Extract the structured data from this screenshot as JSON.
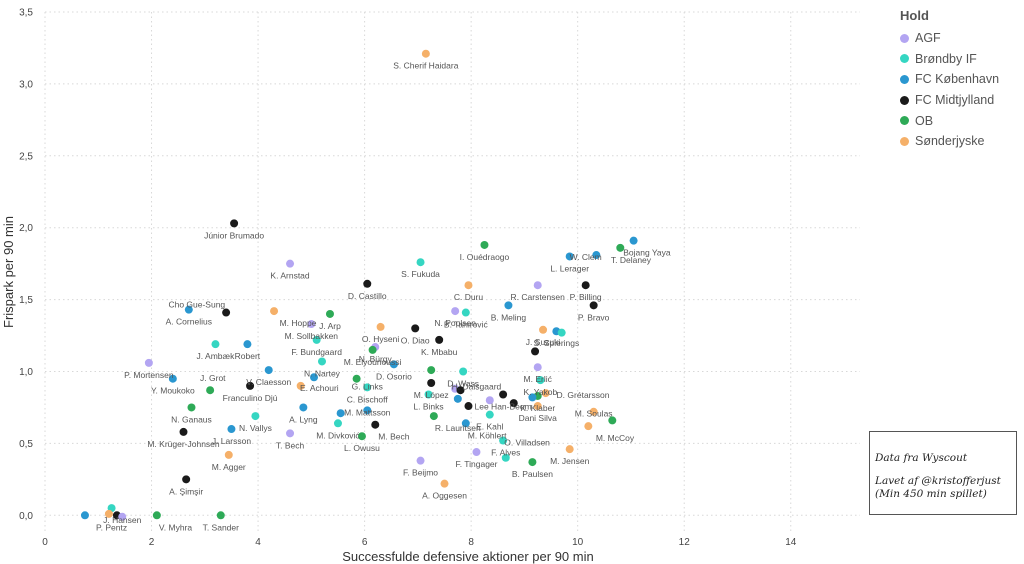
{
  "chart_data": {
    "type": "scatter",
    "xlabel": "Successfulde defensive aktioner per 90 min",
    "ylabel": "Frispark per 90 min",
    "xlim": [
      0,
      15.3
    ],
    "ylim": [
      -0.13,
      3.5
    ],
    "xticks": [
      0,
      2,
      4,
      6,
      8,
      10,
      12,
      14
    ],
    "yticks": [
      0.0,
      0.5,
      1.0,
      1.5,
      2.0,
      2.5,
      3.0,
      3.5
    ],
    "xtick_labels": [
      "0",
      "2",
      "4",
      "6",
      "8",
      "10",
      "12",
      "14"
    ],
    "ytick_labels": [
      "0,0",
      "0,5",
      "1,0",
      "1,5",
      "2,0",
      "2,5",
      "3,0",
      "3,5"
    ],
    "grid": true,
    "legend_position": "top-right",
    "legend": {
      "title": "Hold",
      "items": [
        {
          "name": "AGF",
          "color": "#b3a5f2"
        },
        {
          "name": "Brøndby IF",
          "color": "#35d6c2"
        },
        {
          "name": "FC København",
          "color": "#2a97d0"
        },
        {
          "name": "FC Midtjylland",
          "color": "#1a1a1a"
        },
        {
          "name": "OB",
          "color": "#2eaa57"
        },
        {
          "name": "Sønderjyske",
          "color": "#f5b069"
        }
      ]
    },
    "points": [
      {
        "label": "S. Cherif Haidara",
        "x": 7.15,
        "y": 3.21,
        "team": "Sønderjyske"
      },
      {
        "label": "Júnior Brumado",
        "x": 3.55,
        "y": 2.03,
        "team": "FC Midtjylland"
      },
      {
        "label": "Bojang Yaya",
        "x": 11.05,
        "y": 1.91,
        "team": "FC København"
      },
      {
        "label": "W. Clem",
        "x": 10.35,
        "y": 1.81,
        "team": "FC København"
      },
      {
        "label": "T. Delaney",
        "x": 10.8,
        "y": 1.86,
        "team": "OB"
      },
      {
        "label": "I. Ouédraogo",
        "x": 8.25,
        "y": 1.88,
        "team": "OB"
      },
      {
        "label": "L. Lerager",
        "x": 9.85,
        "y": 1.8,
        "team": "FC København"
      },
      {
        "label": "K. Arnstad",
        "x": 4.6,
        "y": 1.75,
        "team": "AGF"
      },
      {
        "label": "S. Fukuda",
        "x": 7.05,
        "y": 1.76,
        "team": "Brøndby IF"
      },
      {
        "label": "D. Castillo",
        "x": 6.05,
        "y": 1.61,
        "team": "FC Midtjylland"
      },
      {
        "label": "C. Duru",
        "x": 7.95,
        "y": 1.6,
        "team": "Sønderjyske"
      },
      {
        "label": "R. Carstensen",
        "x": 9.25,
        "y": 1.6,
        "team": "AGF"
      },
      {
        "label": "P. Billing",
        "x": 10.15,
        "y": 1.6,
        "team": "FC Midtjylland"
      },
      {
        "label": "Cho Gue-Sung",
        "x": 3.4,
        "y": 1.41,
        "team": "FC Midtjylland"
      },
      {
        "label": "A. Cornelius",
        "x": 2.7,
        "y": 1.43,
        "team": "FC København"
      },
      {
        "label": "M. Hoppe",
        "x": 4.3,
        "y": 1.42,
        "team": "Sønderjyske"
      },
      {
        "label": "J. Arp",
        "x": 5.35,
        "y": 1.4,
        "team": "OB"
      },
      {
        "label": "B. Tahirović",
        "x": 7.9,
        "y": 1.41,
        "team": "Brøndby IF"
      },
      {
        "label": "N. Poulsen",
        "x": 7.7,
        "y": 1.42,
        "team": "AGF"
      },
      {
        "label": "P. Bravo",
        "x": 10.3,
        "y": 1.46,
        "team": "FC Midtjylland"
      },
      {
        "label": "B. Meling",
        "x": 8.7,
        "y": 1.46,
        "team": "FC København"
      },
      {
        "label": "O. Hyseni",
        "x": 6.3,
        "y": 1.31,
        "team": "Sønderjyske"
      },
      {
        "label": "M. Sollbakken",
        "x": 5.0,
        "y": 1.33,
        "team": "AGF"
      },
      {
        "label": "J. Suzuki",
        "x": 9.35,
        "y": 1.29,
        "team": "Sønderjyske"
      },
      {
        "label": "S. Spierings",
        "x": 9.6,
        "y": 1.28,
        "team": "FC København"
      },
      {
        "label": "S. Spierings (B)",
        "x": 9.7,
        "y": 1.27,
        "team": "Brøndby IF"
      },
      {
        "label": "O. Diao",
        "x": 6.95,
        "y": 1.3,
        "team": "FC Midtjylland"
      },
      {
        "label": "N. Bürgy",
        "x": 6.2,
        "y": 1.17,
        "team": "AGF"
      },
      {
        "label": "K. Mbabu",
        "x": 7.4,
        "y": 1.22,
        "team": "FC Midtjylland"
      },
      {
        "label": "Robert",
        "x": 3.8,
        "y": 1.19,
        "team": "FC København"
      },
      {
        "label": "J. Ambæk",
        "x": 3.2,
        "y": 1.19,
        "team": "Brøndby IF"
      },
      {
        "label": "F. Bundgaard",
        "x": 5.1,
        "y": 1.22,
        "team": "Brøndby IF"
      },
      {
        "label": "M. Elyounoussi",
        "x": 6.15,
        "y": 1.15,
        "team": "OB"
      },
      {
        "label": "S. Spierings (M)",
        "x": 9.2,
        "y": 1.14,
        "team": "FC Midtjylland"
      },
      {
        "label": "P. Mortensen",
        "x": 1.95,
        "y": 1.06,
        "team": "AGF"
      },
      {
        "label": "N. Nartey",
        "x": 5.2,
        "y": 1.07,
        "team": "Brøndby IF"
      },
      {
        "label": "D. Wass",
        "x": 7.85,
        "y": 1.0,
        "team": "Brøndby IF"
      },
      {
        "label": "M. Erlić",
        "x": 9.25,
        "y": 1.03,
        "team": "AGF"
      },
      {
        "label": "J. Grot",
        "x": 2.4,
        "y": 0.95,
        "team": "FC København"
      },
      {
        "label": "V. Claesson",
        "x": 4.2,
        "y": 1.01,
        "team": "FC København"
      },
      {
        "label": "N. Nartey (K)",
        "x": 5.05,
        "y": 0.96,
        "team": "FC København"
      },
      {
        "label": "D. Osorio",
        "x": 6.55,
        "y": 1.05,
        "team": "FC København"
      },
      {
        "label": "G. Links",
        "x": 7.25,
        "y": 1.01,
        "team": "OB"
      },
      {
        "label": "K. Yakob",
        "x": 9.3,
        "y": 0.94,
        "team": "Brøndby IF"
      },
      {
        "label": "Y. Moukoko",
        "x": 3.1,
        "y": 0.87,
        "team": "OB"
      },
      {
        "label": "Franculino Djú",
        "x": 3.85,
        "y": 0.9,
        "team": "FC Midtjylland"
      },
      {
        "label": "E. Achouri",
        "x": 4.8,
        "y": 0.9,
        "team": "Sønderjyske"
      },
      {
        "label": "M. López",
        "x": 7.25,
        "y": 0.92,
        "team": "FC Midtjylland"
      },
      {
        "label": "H. Dalsgaard",
        "x": 7.7,
        "y": 0.88,
        "team": "AGF"
      },
      {
        "label": "H. Dalsgaard (M)",
        "x": 7.8,
        "y": 0.87,
        "team": "FC Midtjylland"
      },
      {
        "label": "K. Klaber",
        "x": 9.25,
        "y": 0.83,
        "team": "OB"
      },
      {
        "label": "D. Grétarsson",
        "x": 9.4,
        "y": 0.85,
        "team": "Sønderjyske"
      },
      {
        "label": "D. Grétarsson (K)",
        "x": 9.15,
        "y": 0.82,
        "team": "FC København"
      },
      {
        "label": "C. Bischoff",
        "x": 6.05,
        "y": 0.89,
        "team": "Brøndby IF"
      },
      {
        "label": "L. Binks",
        "x": 7.2,
        "y": 0.84,
        "team": "Brøndby IF"
      },
      {
        "label": "Lee Han-Beom",
        "x": 8.6,
        "y": 0.84,
        "team": "FC Midtjylland"
      },
      {
        "label": "Dani Silva",
        "x": 8.8,
        "y": 0.78,
        "team": "FC Midtjylland"
      },
      {
        "label": "Dani Silva (A)",
        "x": 8.35,
        "y": 0.8,
        "team": "AGF"
      },
      {
        "label": "Dani Silva (S)",
        "x": 9.25,
        "y": 0.76,
        "team": "Sønderjyske"
      },
      {
        "label": "A. Lyng",
        "x": 4.85,
        "y": 0.75,
        "team": "FC København"
      },
      {
        "label": "N. Ganaus",
        "x": 2.75,
        "y": 0.75,
        "team": "OB"
      },
      {
        "label": "M. Mattsson",
        "x": 5.55,
        "y": 0.71,
        "team": "FC København"
      },
      {
        "label": "M. Mattsson (K2)",
        "x": 6.05,
        "y": 0.73,
        "team": "FC København"
      },
      {
        "label": "E. Kahl",
        "x": 7.95,
        "y": 0.76,
        "team": "FC Midtjylland"
      },
      {
        "label": "E. Kahl (B)",
        "x": 8.35,
        "y": 0.7,
        "team": "Brøndby IF"
      },
      {
        "label": "E. Kahl (K)",
        "x": 7.75,
        "y": 0.81,
        "team": "FC København"
      },
      {
        "label": "M. Soulas",
        "x": 10.3,
        "y": 0.72,
        "team": "Sønderjyske"
      },
      {
        "label": "M. Krüger-Johnsen",
        "x": 2.6,
        "y": 0.58,
        "team": "FC Midtjylland"
      },
      {
        "label": "N. Vallys",
        "x": 3.95,
        "y": 0.69,
        "team": "Brøndby IF"
      },
      {
        "label": "M. Bech",
        "x": 6.2,
        "y": 0.63,
        "team": "FC Midtjylland"
      },
      {
        "label": "R. Lauritsen",
        "x": 7.3,
        "y": 0.69,
        "team": "OB"
      },
      {
        "label": "M. Köhlert",
        "x": 7.9,
        "y": 0.64,
        "team": "FC København"
      },
      {
        "label": "M. McCoy",
        "x": 10.2,
        "y": 0.62,
        "team": "Sønderjyske"
      },
      {
        "label": "M. McCoy (O)",
        "x": 10.65,
        "y": 0.66,
        "team": "OB"
      },
      {
        "label": "J. Larsson",
        "x": 3.5,
        "y": 0.6,
        "team": "FC København"
      },
      {
        "label": "T. Bech",
        "x": 4.6,
        "y": 0.57,
        "team": "AGF"
      },
      {
        "label": "M. Divković",
        "x": 5.5,
        "y": 0.64,
        "team": "Brøndby IF"
      },
      {
        "label": "C. Bischoff (O)",
        "x": 5.85,
        "y": 0.95,
        "team": "OB"
      },
      {
        "label": "L. Owusu",
        "x": 5.95,
        "y": 0.55,
        "team": "OB"
      },
      {
        "label": "O. Villadsen",
        "x": 8.6,
        "y": 0.52,
        "team": "Brøndby IF"
      },
      {
        "label": "M. Agger",
        "x": 3.45,
        "y": 0.42,
        "team": "Sønderjyske"
      },
      {
        "label": "F. Alves",
        "x": 8.65,
        "y": 0.4,
        "team": "Brøndby IF"
      },
      {
        "label": "M. Jensen",
        "x": 9.85,
        "y": 0.46,
        "team": "Sønderjyske"
      },
      {
        "label": "F. Tingager",
        "x": 8.1,
        "y": 0.44,
        "team": "AGF"
      },
      {
        "label": "F. Beijmo",
        "x": 7.05,
        "y": 0.38,
        "team": "AGF"
      },
      {
        "label": "B. Paulsen",
        "x": 9.15,
        "y": 0.37,
        "team": "OB"
      },
      {
        "label": "A. Şimşir",
        "x": 2.65,
        "y": 0.25,
        "team": "FC Midtjylland"
      },
      {
        "label": "A. Oggesen",
        "x": 7.5,
        "y": 0.22,
        "team": "Sønderjyske"
      },
      {
        "label": "J. Hansen",
        "x": 1.25,
        "y": 0.05,
        "team": "Brøndby IF"
      },
      {
        "label": "P. Pentz",
        "x": 0.75,
        "y": 0.0,
        "team": "FC København"
      },
      {
        "label": "P. Pentz (M)",
        "x": 1.35,
        "y": 0.0,
        "team": "FC Midtjylland"
      },
      {
        "label": "P. Pentz (A)",
        "x": 1.45,
        "y": -0.01,
        "team": "AGF"
      },
      {
        "label": "P. Pentz (S)",
        "x": 1.2,
        "y": 0.01,
        "team": "Sønderjyske"
      },
      {
        "label": "V. Myhra",
        "x": 2.1,
        "y": 0.0,
        "team": "OB"
      },
      {
        "label": "T. Sander",
        "x": 3.3,
        "y": 0.0,
        "team": "OB"
      }
    ]
  },
  "visible_labels": [
    {
      "t": "S. Cherif Haidara",
      "x": 7.15,
      "y": 3.21
    },
    {
      "t": "Júnior Brumado",
      "x": 3.55,
      "y": 2.03
    },
    {
      "t": "Bojang Yaya",
      "x": 11.3,
      "y": 1.91
    },
    {
      "t": "W. Clem",
      "x": 10.15,
      "y": 1.88
    },
    {
      "t": "T. Delaney",
      "x": 11.0,
      "y": 1.86
    },
    {
      "t": "I. Ouédraogo",
      "x": 8.25,
      "y": 1.88
    },
    {
      "t": "L. Lerager",
      "x": 9.85,
      "y": 1.8
    },
    {
      "t": "K. Arnstad",
      "x": 4.6,
      "y": 1.75
    },
    {
      "t": "S. Fukuda",
      "x": 7.05,
      "y": 1.76
    },
    {
      "t": "D. Castillo",
      "x": 6.05,
      "y": 1.61
    },
    {
      "t": "C. Duru",
      "x": 7.95,
      "y": 1.6
    },
    {
      "t": "R. Carstensen",
      "x": 9.25,
      "y": 1.6
    },
    {
      "t": "P. Billing",
      "x": 10.15,
      "y": 1.6
    },
    {
      "t": "Cho Gue-Sung",
      "x": 2.85,
      "y": 1.55
    },
    {
      "t": "A. Cornelius",
      "x": 2.7,
      "y": 1.43
    },
    {
      "t": "M. Hoppe",
      "x": 4.75,
      "y": 1.42
    },
    {
      "t": "J. Arp",
      "x": 5.35,
      "y": 1.4
    },
    {
      "t": "B. Tahirović",
      "x": 7.9,
      "y": 1.41
    },
    {
      "t": "N. Poulsen",
      "x": 7.7,
      "y": 1.42
    },
    {
      "t": "P. Bravo",
      "x": 10.3,
      "y": 1.46
    },
    {
      "t": "B. Meling",
      "x": 8.7,
      "y": 1.46
    },
    {
      "t": "O. Hyseni",
      "x": 6.3,
      "y": 1.31
    },
    {
      "t": "M. Sollbakken",
      "x": 5.0,
      "y": 1.33
    },
    {
      "t": "J. Suzuki",
      "x": 9.35,
      "y": 1.29
    },
    {
      "t": "S. Spierings",
      "x": 9.6,
      "y": 1.28
    },
    {
      "t": "O. Diao",
      "x": 6.95,
      "y": 1.3
    },
    {
      "t": "N. Bürgy",
      "x": 6.2,
      "y": 1.17
    },
    {
      "t": "K. Mbabu",
      "x": 7.4,
      "y": 1.22
    },
    {
      "t": "Robert",
      "x": 3.8,
      "y": 1.19
    },
    {
      "t": "J. Ambæk",
      "x": 3.2,
      "y": 1.19
    },
    {
      "t": "F. Bundgaard",
      "x": 5.1,
      "y": 1.22
    },
    {
      "t": "M. Elyounoussi",
      "x": 6.15,
      "y": 1.15
    },
    {
      "t": "P. Mortensen",
      "x": 1.95,
      "y": 1.06
    },
    {
      "t": "N. Nartey",
      "x": 5.2,
      "y": 1.07
    },
    {
      "t": "D. Wass",
      "x": 7.85,
      "y": 1.0
    },
    {
      "t": "M. Erlić",
      "x": 9.25,
      "y": 1.03
    },
    {
      "t": "J. Grot",
      "x": 3.15,
      "y": 1.04
    },
    {
      "t": "V. Claesson",
      "x": 4.2,
      "y": 1.01
    },
    {
      "t": "D. Osorio",
      "x": 6.55,
      "y": 1.05
    },
    {
      "t": "G. Links",
      "x": 6.05,
      "y": 0.98
    },
    {
      "t": "K. Yakob",
      "x": 9.3,
      "y": 0.94
    },
    {
      "t": "Y. Moukoko",
      "x": 2.4,
      "y": 0.95
    },
    {
      "t": "Franculino Djú",
      "x": 3.85,
      "y": 0.9
    },
    {
      "t": "E. Achouri",
      "x": 5.15,
      "y": 0.97
    },
    {
      "t": "M. López",
      "x": 7.25,
      "y": 0.92
    },
    {
      "t": "H. Dalsgaard",
      "x": 8.1,
      "y": 0.98
    },
    {
      "t": "K. Klaber",
      "x": 9.25,
      "y": 0.83
    },
    {
      "t": "D. Grétarsson",
      "x": 10.1,
      "y": 0.92
    },
    {
      "t": "C. Bischoff",
      "x": 6.05,
      "y": 0.89
    },
    {
      "t": "L. Binks",
      "x": 7.2,
      "y": 0.84
    },
    {
      "t": "Lee Han-Beom",
      "x": 8.6,
      "y": 0.84
    },
    {
      "t": "Dani Silva",
      "x": 9.25,
      "y": 0.76
    },
    {
      "t": "A. Lyng",
      "x": 4.85,
      "y": 0.75
    },
    {
      "t": "N. Ganaus",
      "x": 2.75,
      "y": 0.75
    },
    {
      "t": "M. Mattsson",
      "x": 6.05,
      "y": 0.8
    },
    {
      "t": "E. Kahl",
      "x": 8.35,
      "y": 0.7
    },
    {
      "t": "M. Soulas",
      "x": 10.3,
      "y": 0.79
    },
    {
      "t": "M. Krüger-Johnsen",
      "x": 2.6,
      "y": 0.58
    },
    {
      "t": "N. Vallys",
      "x": 3.95,
      "y": 0.69
    },
    {
      "t": "M. Bech",
      "x": 6.55,
      "y": 0.63
    },
    {
      "t": "R. Lauritsen",
      "x": 7.75,
      "y": 0.69
    },
    {
      "t": "M. Köhlert",
      "x": 8.3,
      "y": 0.64
    },
    {
      "t": "M. McCoy",
      "x": 10.7,
      "y": 0.62
    },
    {
      "t": "J. Larsson",
      "x": 3.5,
      "y": 0.6
    },
    {
      "t": "T. Bech",
      "x": 4.6,
      "y": 0.57
    },
    {
      "t": "M. Divković",
      "x": 5.5,
      "y": 0.64
    },
    {
      "t": "L. Owusu",
      "x": 5.95,
      "y": 0.55
    },
    {
      "t": "O. Villadsen",
      "x": 9.05,
      "y": 0.59
    },
    {
      "t": "M. Agger",
      "x": 3.45,
      "y": 0.42
    },
    {
      "t": "F. Alves",
      "x": 8.65,
      "y": 0.52
    },
    {
      "t": "M. Jensen",
      "x": 9.85,
      "y": 0.46
    },
    {
      "t": "F. Tingager",
      "x": 8.1,
      "y": 0.44
    },
    {
      "t": "F. Beijmo",
      "x": 7.05,
      "y": 0.38
    },
    {
      "t": "B. Paulsen",
      "x": 9.15,
      "y": 0.37
    },
    {
      "t": "A. Şimşir",
      "x": 2.65,
      "y": 0.25
    },
    {
      "t": "A. Oggesen",
      "x": 7.5,
      "y": 0.22
    },
    {
      "t": "J. Hansen",
      "x": 1.45,
      "y": 0.05
    },
    {
      "t": "P. Pentz",
      "x": 1.25,
      "y": 0.0
    },
    {
      "t": "V. Myhra",
      "x": 2.45,
      "y": 0.0
    },
    {
      "t": "T. Sander",
      "x": 3.3,
      "y": 0.0
    }
  ],
  "note": {
    "line1": "Data fra Wyscout",
    "line2": "Lavet af @kristofferjust",
    "line3": "(Min 450 min spillet)"
  }
}
